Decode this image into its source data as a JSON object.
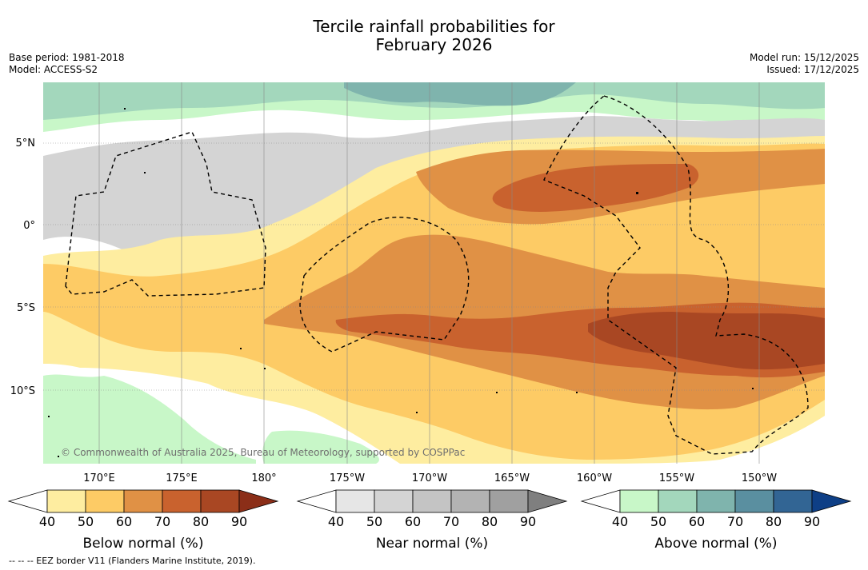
{
  "title": {
    "line1": "Tercile rainfall probabilities for",
    "line2": "February 2026"
  },
  "meta_left": {
    "base_period": "Base period: 1981-2018",
    "model": "Model: ACCESS-S2"
  },
  "meta_right": {
    "model_run": "Model run: 15/12/2025",
    "issued": "Issued: 17/12/2025"
  },
  "map": {
    "lat_labels": [
      "5°N",
      "0°",
      "5°S",
      "10°S"
    ],
    "lon_labels": [
      "170°E",
      "175°E",
      "180°",
      "175°W",
      "170°W",
      "165°W",
      "160°W",
      "155°W",
      "150°W"
    ],
    "copyright": "© Commonwealth of Australia 2025, Bureau of Meteorology, supported by COSPPac",
    "colors": {
      "below": [
        "#ffffff",
        "#feeda0",
        "#fdcb65",
        "#e09145",
        "#c9622e",
        "#a94723",
        "#8b2e18"
      ],
      "near": [
        "#ffffff",
        "#e6e6e6",
        "#d4d4d4",
        "#c4c4c4",
        "#b3b3b3",
        "#a0a0a0",
        "#7f7f7f"
      ],
      "above": [
        "#ffffff",
        "#c8f7c8",
        "#a3d7bc",
        "#7fb4ad",
        "#5a8fa0",
        "#326594",
        "#0e3f86"
      ]
    }
  },
  "colorbars": [
    {
      "id": "below",
      "label": "Below normal (%)",
      "ticks": [
        "40",
        "50",
        "60",
        "70",
        "80",
        "90"
      ]
    },
    {
      "id": "near",
      "label": "Near normal (%)",
      "ticks": [
        "40",
        "50",
        "60",
        "70",
        "80",
        "90"
      ]
    },
    {
      "id": "above",
      "label": "Above normal (%)",
      "ticks": [
        "40",
        "50",
        "60",
        "70",
        "80",
        "90"
      ]
    }
  ],
  "footer": "--  --  -- EEZ border V11 (Flanders Marine Institute, 2019)."
}
